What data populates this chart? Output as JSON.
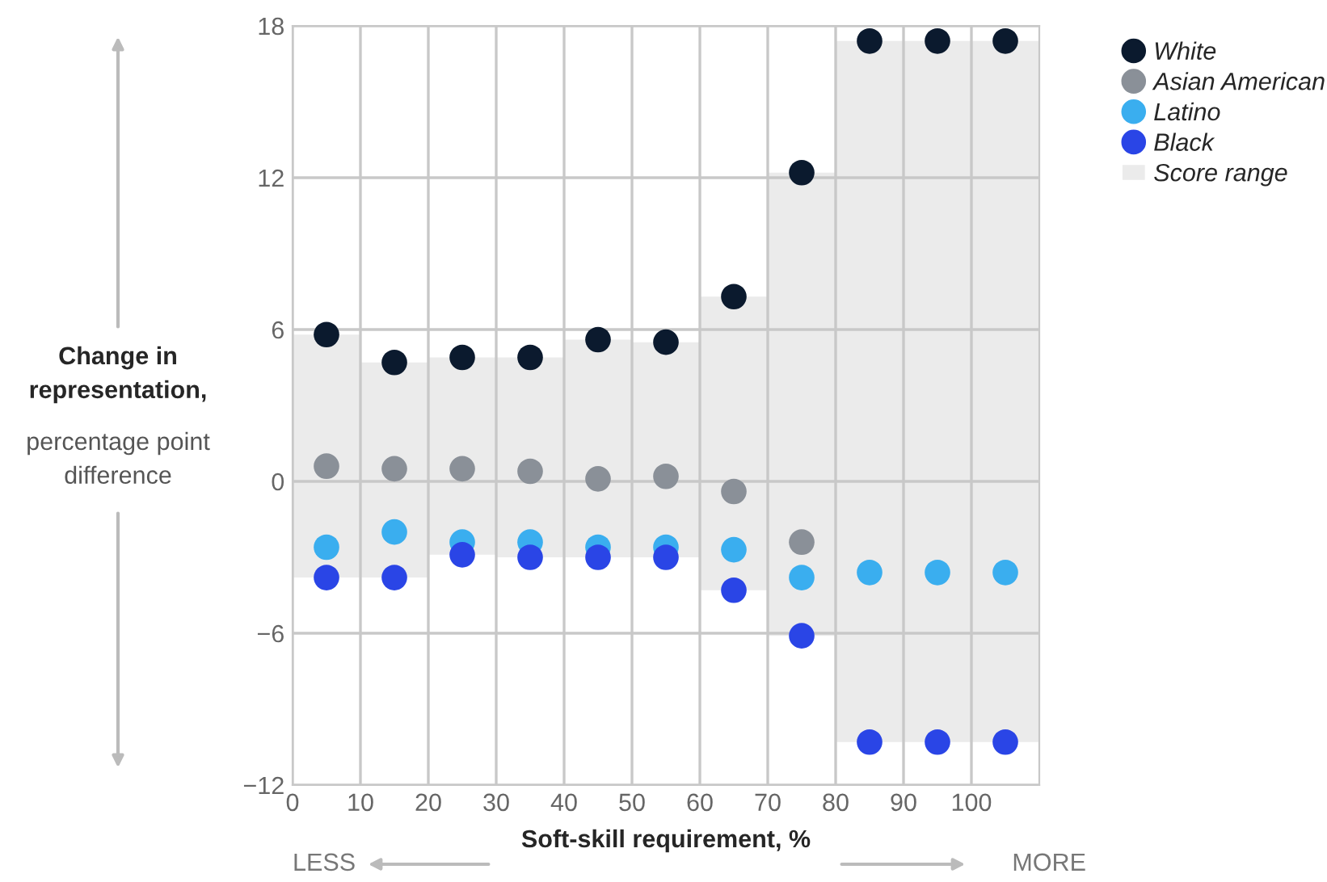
{
  "chart_data": {
    "type": "scatter",
    "xlabel": "Soft-skill requirement, %",
    "ylabel": "Change in representation, percentage point difference",
    "x": [
      5,
      15,
      25,
      35,
      45,
      55,
      65,
      75,
      85,
      95,
      105
    ],
    "series": [
      {
        "name": "Score range",
        "type": "bar",
        "color": "#ebebeb",
        "base": [
          -3.8,
          -3.8,
          -2.9,
          -3.0,
          -3.0,
          -3.0,
          -4.3,
          -6.1,
          -10.3,
          -10.3,
          -10.3
        ],
        "values": [
          9.6,
          8.5,
          7.8,
          7.9,
          8.6,
          8.5,
          11.6,
          18.3,
          27.7,
          27.7,
          27.7
        ]
      },
      {
        "name": "White",
        "color": "#0b1a2e",
        "values": [
          5.8,
          4.7,
          4.9,
          4.9,
          5.6,
          5.5,
          7.3,
          12.2,
          17.4,
          17.4,
          17.4
        ]
      },
      {
        "name": "Asian American",
        "color": "#8a9098",
        "values": [
          0.6,
          0.5,
          0.5,
          0.4,
          0.1,
          0.2,
          -0.4,
          -2.4,
          null,
          null,
          null
        ]
      },
      {
        "name": "Latino",
        "color": "#3aaeef",
        "values": [
          -2.6,
          -2.0,
          -2.4,
          -2.4,
          -2.6,
          -2.6,
          -2.7,
          -3.8,
          -3.6,
          -3.6,
          -3.6
        ]
      },
      {
        "name": "Black",
        "color": "#2a45e6",
        "values": [
          -3.8,
          -3.8,
          -2.9,
          -3.0,
          -3.0,
          -3.0,
          -4.3,
          -6.1,
          -10.3,
          -10.3,
          -10.3
        ]
      }
    ],
    "xlim": [
      0,
      110
    ],
    "xticks": [
      0,
      10,
      20,
      30,
      40,
      50,
      60,
      70,
      80,
      90,
      100
    ],
    "ylim": [
      -12,
      18
    ],
    "yticks": [
      -12,
      -6,
      0,
      6,
      12,
      18
    ],
    "grid": true,
    "legend": "top right",
    "marker": "circle",
    "annotations": [
      "LESS",
      "MORE"
    ]
  }
}
